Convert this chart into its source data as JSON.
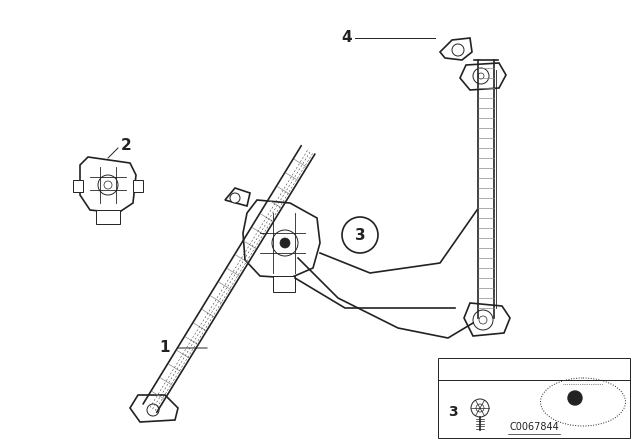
{
  "background_color": "#ffffff",
  "catalog_code": "C0067844",
  "fig_width": 6.4,
  "fig_height": 4.48,
  "dpi": 100,
  "color": "#222222",
  "lgray": "#888888",
  "lw_main": 1.2,
  "lw_thin": 0.7
}
